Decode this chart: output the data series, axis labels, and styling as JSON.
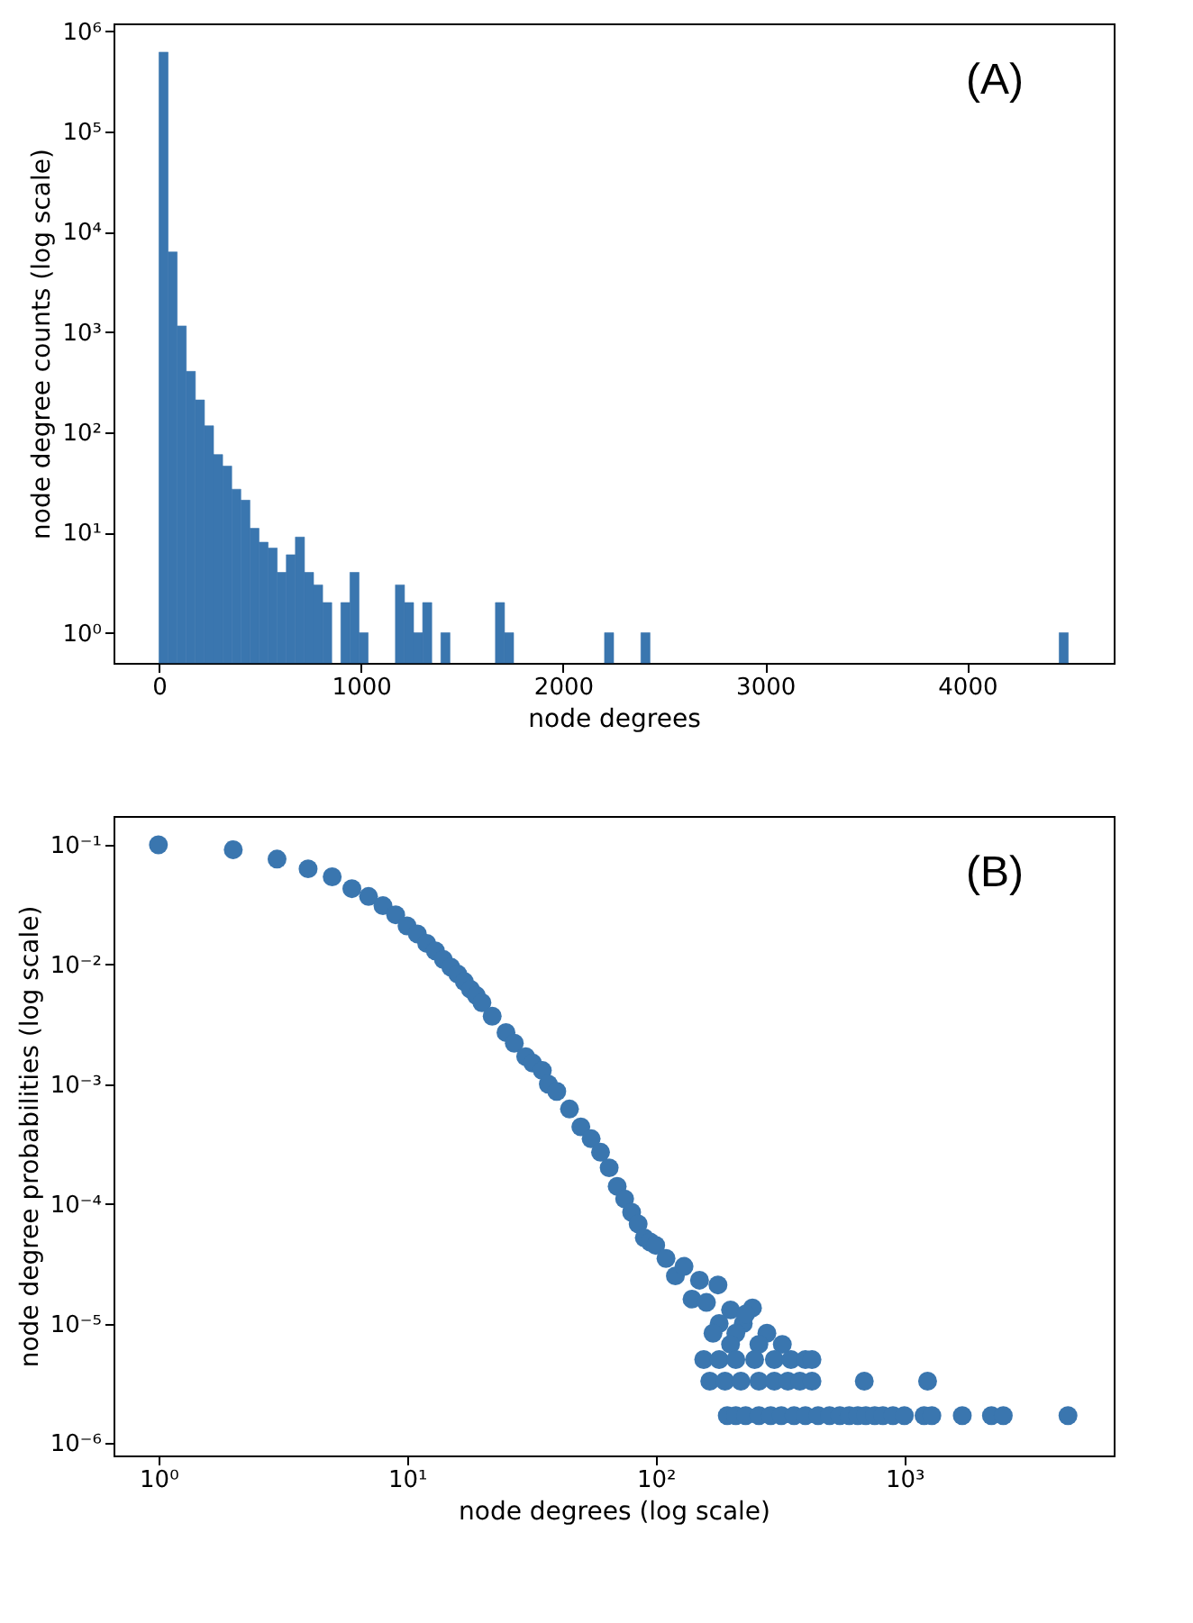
{
  "chart_data": [
    {
      "type": "histogram",
      "xlabel": "node degrees",
      "ylabel": "node degree counts (log scale)",
      "annotations": [
        "(A)"
      ],
      "color": "#3a76af",
      "log": "y",
      "grid": false,
      "bins": [
        0,
        45,
        90,
        135,
        180,
        225,
        270,
        315,
        360,
        405,
        450,
        495,
        540,
        585,
        630,
        675,
        720,
        765,
        810,
        855,
        900,
        945,
        990,
        1035,
        1080,
        1125,
        1170,
        1215,
        1260,
        1305,
        1350,
        1395,
        1440,
        1485,
        1530,
        1575,
        1620,
        1665,
        1710,
        1755,
        1800,
        1845,
        1890,
        1935,
        1980,
        2025,
        2070,
        2115,
        2160,
        2205,
        2250,
        2295,
        2340,
        2385,
        2430,
        2475,
        2520,
        2565,
        2610,
        2655,
        2700,
        2745,
        2790,
        2835,
        2880,
        2925,
        2970,
        3015,
        3060,
        3105,
        3150,
        3195,
        3240,
        3285,
        3330,
        3375,
        3420,
        3465,
        3510,
        3555,
        3600,
        3645,
        3690,
        3735,
        3780,
        3825,
        3870,
        3915,
        3960,
        4005,
        4050,
        4095,
        4140,
        4185,
        4230,
        4275,
        4320,
        4365,
        4410,
        4455,
        4500
      ],
      "values": [
        620000,
        6300,
        1150,
        405,
        210,
        116,
        60,
        46,
        27,
        21,
        11,
        8,
        7,
        4,
        6,
        9,
        4,
        3,
        2,
        null,
        2,
        4,
        1,
        null,
        null,
        null,
        3,
        2,
        1,
        2,
        null,
        1,
        null,
        null,
        null,
        null,
        null,
        2,
        1,
        null,
        null,
        null,
        null,
        null,
        null,
        null,
        null,
        null,
        null,
        1,
        null,
        null,
        null,
        1,
        null,
        null,
        null,
        null,
        null,
        null,
        null,
        null,
        null,
        null,
        null,
        null,
        null,
        null,
        null,
        null,
        null,
        null,
        null,
        null,
        null,
        null,
        null,
        null,
        null,
        null,
        null,
        null,
        null,
        null,
        null,
        null,
        null,
        null,
        null,
        null,
        null,
        null,
        null,
        null,
        null,
        null,
        null,
        null,
        null,
        1
      ],
      "xlim": [
        -225,
        4725
      ],
      "xticks": [
        0,
        1000,
        2000,
        3000,
        4000
      ],
      "ylim": [
        0.5,
        1200000
      ],
      "yticks": [
        {
          "value": 1,
          "label": "10⁰"
        },
        {
          "value": 10,
          "label": "10¹"
        },
        {
          "value": 100,
          "label": "10²"
        },
        {
          "value": 1000,
          "label": "10³"
        },
        {
          "value": 10000,
          "label": "10⁴"
        },
        {
          "value": 100000,
          "label": "10⁵"
        },
        {
          "value": 1000000,
          "label": "10⁶"
        }
      ]
    },
    {
      "type": "scatter",
      "xlabel": "node degrees (log scale)",
      "ylabel": "node degree probabilities (log scale)",
      "annotations": [
        "(B)"
      ],
      "log": "xy",
      "grid": false,
      "marker": "circle",
      "series": [
        {
          "color": "#3a76af",
          "x": [
            1,
            2,
            3,
            4,
            5,
            6,
            7,
            8,
            9,
            10,
            11,
            12,
            13,
            14,
            15,
            16,
            17,
            18,
            19,
            20,
            22,
            25,
            27,
            30,
            32,
            35,
            37,
            40,
            45,
            50,
            55,
            60,
            65,
            70,
            75,
            80,
            85,
            90,
            95,
            100,
            110,
            120,
            130,
            140,
            150,
            178,
            160,
            200,
            245,
            180,
            225,
            230,
            170,
            210,
            280,
            200,
            260,
            323,
            156,
            180,
            210,
            250,
            300,
            350,
            400,
            425,
            165,
            190,
            220,
            260,
            300,
            340,
            380,
            425,
            690,
            1240,
            194,
            210,
            230,
            260,
            290,
            320,
            360,
            400,
            450,
            500,
            550,
            600,
            650,
            700,
            760,
            820,
            900,
            1000,
            1200,
            1290,
            1710,
            2240,
            2500,
            4550
          ],
          "values": [
            0.1,
            0.091,
            0.076,
            0.063,
            0.054,
            0.043,
            0.037,
            0.031,
            0.026,
            0.021,
            0.018,
            0.015,
            0.013,
            0.011,
            0.0095,
            0.0083,
            0.0072,
            0.0062,
            0.0055,
            0.0048,
            0.0037,
            0.0027,
            0.0022,
            0.0017,
            0.0015,
            0.0013,
            0.001,
            0.00087,
            0.00062,
            0.00044,
            0.00035,
            0.00027,
            0.0002,
            0.00014,
            0.00011,
            8.5e-05,
            6.8e-05,
            5.2e-05,
            4.8e-05,
            4.5e-05,
            3.5e-05,
            2.5e-05,
            3e-05,
            1.6e-05,
            2.3e-05,
            2.1e-05,
            1.5e-05,
            1.3e-05,
            1.35e-05,
            1e-05,
            1e-05,
            1.2e-05,
            8.3e-06,
            8.3e-06,
            8.3e-06,
            6.7e-06,
            6.7e-06,
            6.7e-06,
            5e-06,
            5e-06,
            5e-06,
            5e-06,
            5e-06,
            5e-06,
            5e-06,
            5e-06,
            3.3e-06,
            3.3e-06,
            3.3e-06,
            3.3e-06,
            3.3e-06,
            3.3e-06,
            3.3e-06,
            3.3e-06,
            3.3e-06,
            3.3e-06,
            1.7e-06,
            1.7e-06,
            1.7e-06,
            1.7e-06,
            1.7e-06,
            1.7e-06,
            1.7e-06,
            1.7e-06,
            1.7e-06,
            1.7e-06,
            1.7e-06,
            1.7e-06,
            1.7e-06,
            1.7e-06,
            1.7e-06,
            1.7e-06,
            1.7e-06,
            1.7e-06,
            1.7e-06,
            1.7e-06,
            1.7e-06,
            1.7e-06,
            1.7e-06,
            1.7e-06
          ]
        }
      ],
      "xlim": [
        0.66,
        6950
      ],
      "xticks": [
        {
          "value": 1,
          "label": "10⁰"
        },
        {
          "value": 10,
          "label": "10¹"
        },
        {
          "value": 100,
          "label": "10²"
        },
        {
          "value": 1000,
          "label": "10³"
        }
      ],
      "ylim": [
        7.9e-07,
        0.174
      ],
      "yticks": [
        {
          "value": 1e-06,
          "label": "10⁻⁶"
        },
        {
          "value": 1e-05,
          "label": "10⁻⁵"
        },
        {
          "value": 0.0001,
          "label": "10⁻⁴"
        },
        {
          "value": 0.001,
          "label": "10⁻³"
        },
        {
          "value": 0.01,
          "label": "10⁻²"
        },
        {
          "value": 0.1,
          "label": "10⁻¹"
        }
      ]
    }
  ]
}
